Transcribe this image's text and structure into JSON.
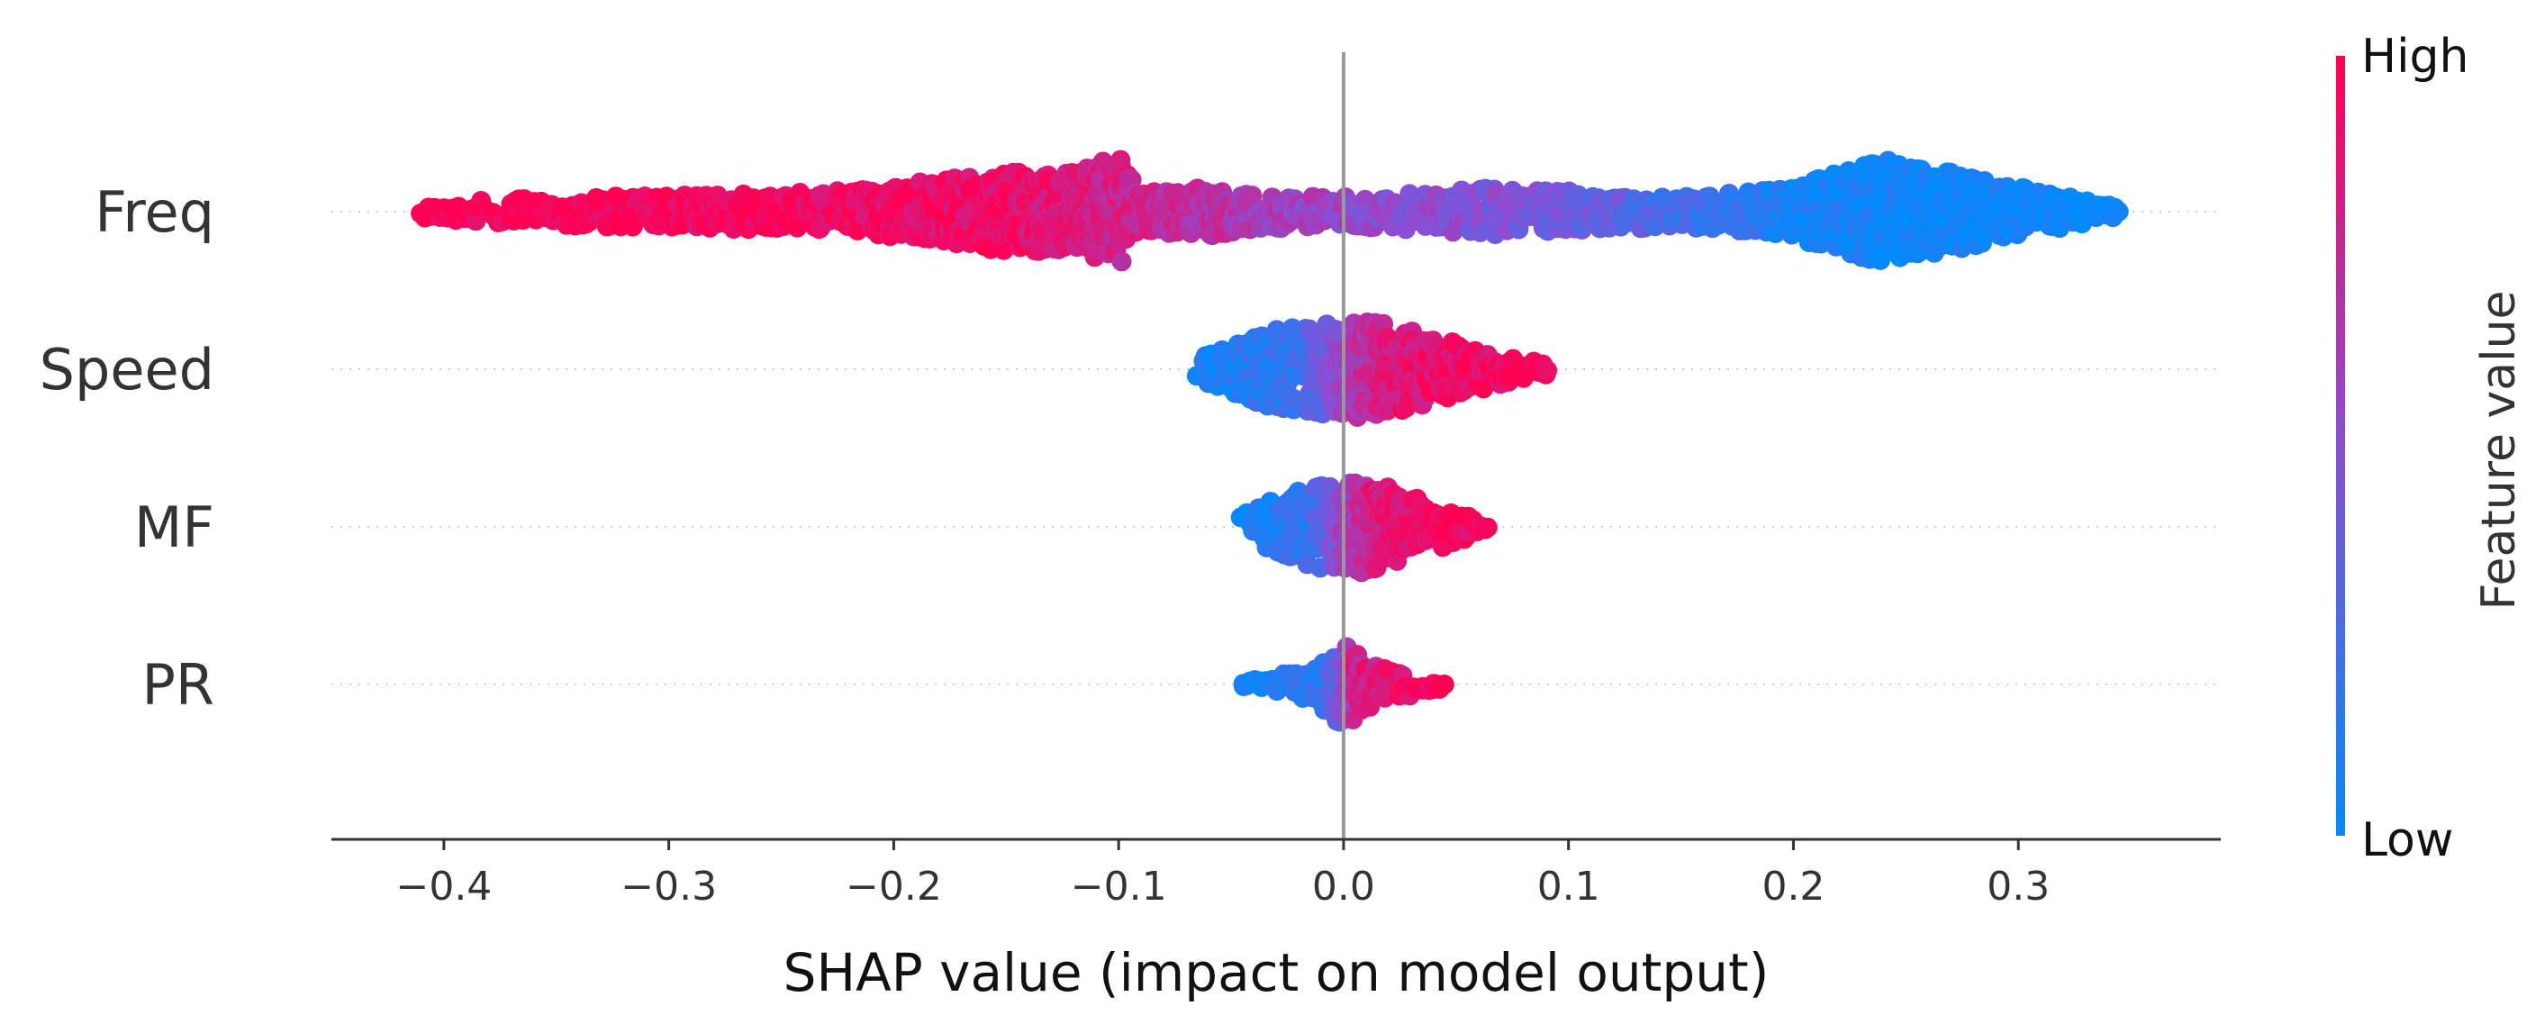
{
  "chart_data": {
    "type": "scatter",
    "subtype": "shap-beeswarm",
    "title": "",
    "xlabel": "SHAP value (impact on model output)",
    "ylabel": "",
    "xlim": [
      -0.45,
      0.39
    ],
    "xticks": [
      -0.4,
      -0.3,
      -0.2,
      -0.1,
      0.0,
      0.1,
      0.2,
      0.3
    ],
    "xtick_labels": [
      "−0.4",
      "−0.3",
      "−0.2",
      "−0.1",
      "0.0",
      "0.1",
      "0.2",
      "0.3"
    ],
    "features": [
      {
        "name": "Freq",
        "shap_range": [
          -0.41,
          0.345
        ],
        "profile": [
          [
            -0.41,
            0.1
          ],
          [
            -0.38,
            0.2
          ],
          [
            -0.33,
            0.26
          ],
          [
            -0.27,
            0.3
          ],
          [
            -0.22,
            0.36
          ],
          [
            -0.18,
            0.55
          ],
          [
            -0.15,
            0.68
          ],
          [
            -0.12,
            0.7
          ],
          [
            -0.1,
            0.95
          ],
          [
            -0.09,
            0.35
          ],
          [
            -0.06,
            0.42
          ],
          [
            -0.03,
            0.3
          ],
          [
            0.0,
            0.25
          ],
          [
            0.03,
            0.32
          ],
          [
            0.06,
            0.4
          ],
          [
            0.09,
            0.38
          ],
          [
            0.12,
            0.3
          ],
          [
            0.16,
            0.28
          ],
          [
            0.2,
            0.45
          ],
          [
            0.24,
            0.9
          ],
          [
            0.28,
            0.6
          ],
          [
            0.31,
            0.35
          ],
          [
            0.345,
            0.08
          ]
        ],
        "color_profile": [
          [
            -0.41,
            1.0
          ],
          [
            -0.15,
            0.92
          ],
          [
            -0.07,
            0.72
          ],
          [
            0.0,
            0.55
          ],
          [
            0.08,
            0.45
          ],
          [
            0.15,
            0.25
          ],
          [
            0.21,
            0.06
          ],
          [
            0.345,
            0.0
          ]
        ]
      },
      {
        "name": "Speed",
        "shap_range": [
          -0.065,
          0.092
        ],
        "profile": [
          [
            -0.065,
            0.2
          ],
          [
            -0.05,
            0.5
          ],
          [
            -0.03,
            0.8
          ],
          [
            -0.01,
            0.9
          ],
          [
            0.01,
            1.0
          ],
          [
            0.03,
            0.8
          ],
          [
            0.05,
            0.55
          ],
          [
            0.07,
            0.3
          ],
          [
            0.092,
            0.1
          ]
        ],
        "color_profile": [
          [
            -0.065,
            0.05
          ],
          [
            -0.02,
            0.2
          ],
          [
            0.0,
            0.55
          ],
          [
            0.02,
            0.85
          ],
          [
            0.092,
            1.0
          ]
        ]
      },
      {
        "name": "MF",
        "shap_range": [
          -0.045,
          0.065
        ],
        "profile": [
          [
            -0.045,
            0.25
          ],
          [
            -0.03,
            0.6
          ],
          [
            -0.015,
            0.85
          ],
          [
            0.0,
            0.95
          ],
          [
            0.01,
            1.0
          ],
          [
            0.025,
            0.75
          ],
          [
            0.04,
            0.5
          ],
          [
            0.055,
            0.25
          ],
          [
            0.065,
            0.1
          ]
        ],
        "color_profile": [
          [
            -0.045,
            0.05
          ],
          [
            -0.015,
            0.2
          ],
          [
            0.0,
            0.55
          ],
          [
            0.015,
            0.85
          ],
          [
            0.065,
            1.0
          ]
        ]
      },
      {
        "name": "PR",
        "shap_range": [
          -0.045,
          0.045
        ],
        "profile": [
          [
            -0.045,
            0.1
          ],
          [
            -0.03,
            0.2
          ],
          [
            -0.015,
            0.35
          ],
          [
            -0.005,
            0.7
          ],
          [
            0.0,
            1.0
          ],
          [
            0.005,
            0.7
          ],
          [
            0.015,
            0.4
          ],
          [
            0.03,
            0.25
          ],
          [
            0.045,
            0.08
          ]
        ],
        "color_profile": [
          [
            -0.045,
            0.05
          ],
          [
            -0.01,
            0.15
          ],
          [
            0.0,
            0.45
          ],
          [
            0.005,
            0.8
          ],
          [
            0.045,
            1.0
          ]
        ]
      }
    ],
    "colorbar": {
      "title": "Feature value",
      "high_label": "High",
      "low_label": "Low",
      "low_color": "#008afb",
      "mid_color": "#8a4fd6",
      "high_color": "#ff0052"
    },
    "zero_line_color": "#999999",
    "gridline_style": "dotted"
  }
}
